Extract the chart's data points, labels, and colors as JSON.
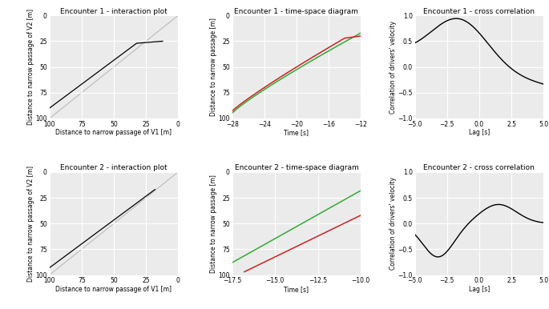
{
  "enc1_interact": {
    "title": "Encounter 1 - interaction plot",
    "xlabel": "Distance to narrow passage of V1 [m]",
    "ylabel": "Distance to narrow passage of V2 [m]",
    "xlim": [
      100,
      0
    ],
    "ylim": [
      100,
      0
    ],
    "xticks": [
      100,
      75,
      50,
      25,
      0
    ],
    "yticks": [
      100,
      75,
      50,
      25,
      0
    ]
  },
  "enc1_timespace": {
    "title": "Encounter 1 - time-space diagram",
    "xlabel": "Time [s]",
    "ylabel": "Distance to narrow passage [m]",
    "xlim": [
      -28,
      -12
    ],
    "ylim": [
      100,
      0
    ],
    "xticks": [
      -28,
      -24,
      -20,
      -16,
      -12
    ],
    "yticks": [
      100,
      75,
      50,
      25,
      0
    ]
  },
  "enc1_xcorr": {
    "title": "Encounter 1 - cross correlation",
    "xlabel": "Lag [s]",
    "ylabel": "Correlation of drivers' velocity",
    "xlim": [
      -5,
      5
    ],
    "ylim": [
      -1,
      1
    ],
    "xticks": [
      -5.0,
      -2.5,
      0.0,
      2.5,
      5.0
    ],
    "yticks": [
      -1.0,
      -0.5,
      0.0,
      0.5,
      1.0
    ]
  },
  "enc2_interact": {
    "title": "Encounter 2 - interaction plot",
    "xlabel": "Distance to narrow passage of V1 [m]",
    "ylabel": "Distance to narrow passage of V2 [m]",
    "xlim": [
      100,
      0
    ],
    "ylim": [
      100,
      0
    ],
    "xticks": [
      100,
      75,
      50,
      25,
      0
    ],
    "yticks": [
      100,
      75,
      50,
      25,
      0
    ]
  },
  "enc2_timespace": {
    "title": "Encounter 2 - time-space diagram",
    "xlabel": "Time [s]",
    "ylabel": "Distance to narrow passage [m]",
    "xlim": [
      -17.5,
      -10
    ],
    "ylim": [
      100,
      0
    ],
    "xticks": [
      -17.5,
      -15.0,
      -12.5,
      -10.0
    ],
    "yticks": [
      100,
      75,
      50,
      25,
      0
    ]
  },
  "enc2_xcorr": {
    "title": "Encounter 2 - cross correlation",
    "xlabel": "Lag [s]",
    "ylabel": "Correlation of drivers' velocity",
    "xlim": [
      -5,
      5
    ],
    "ylim": [
      -1,
      1
    ],
    "xticks": [
      -5.0,
      -2.5,
      0.0,
      2.5,
      5.0
    ],
    "yticks": [
      -1.0,
      -0.5,
      0.0,
      0.5,
      1.0
    ]
  },
  "line_color_black": "#000000",
  "line_color_green": "#33aa33",
  "line_color_red": "#cc2222",
  "line_color_diag": "#bbbbbb",
  "bg_plot": "#ebebeb",
  "bg_fig": "#ffffff",
  "grid_color": "#ffffff",
  "font_size_title": 6.5,
  "font_size_label": 5.5,
  "font_size_tick": 5.5
}
